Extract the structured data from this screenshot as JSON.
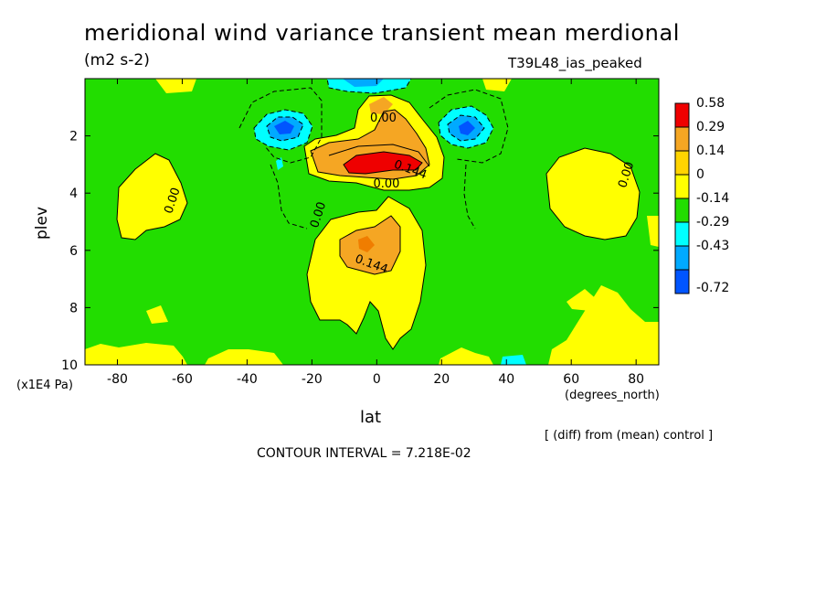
{
  "title": "meridional wind variance transient mean merdional",
  "units": "(m2 s-2)",
  "run_label": "T39L48_ias_peaked",
  "y_axis_label": "plev",
  "y_unit_label": "(x1E4 Pa)",
  "x_axis_label": "lat",
  "x_unit_label": "(degrees_north)",
  "diff_note": "[ (diff) from (mean) control ]",
  "contour_interval": "CONTOUR INTERVAL = 7.218E-02",
  "colors": {
    "red": "#ef0000",
    "dark_orange": "#f07d00",
    "orange": "#f5a623",
    "yellow": "#ffff00",
    "green": "#22dd00",
    "cyan": "#00ffff",
    "sky": "#00aaff",
    "blue": "#0055ff"
  },
  "chart_data": {
    "type": "heatmap",
    "xlim": [
      -90,
      87
    ],
    "ylim": [
      10,
      0
    ],
    "x_ticks": [
      "-80",
      "-60",
      "-40",
      "-20",
      "0",
      "20",
      "40",
      "60",
      "80"
    ],
    "x_tick_values": [
      -80,
      -60,
      -40,
      -20,
      0,
      20,
      40,
      60,
      80
    ],
    "y_ticks": [
      "2",
      "4",
      "6",
      "8",
      "10"
    ],
    "y_tick_values": [
      2,
      4,
      6,
      8,
      10
    ],
    "legend": {
      "labels": [
        "0.58",
        "0.29",
        "0.14",
        "0",
        "-0.14",
        "-0.29",
        "-0.43",
        "-0.72"
      ],
      "colors": [
        "#ef0000",
        "#f5a623",
        "#ffd400",
        "#ffff00",
        "#22dd00",
        "#00ffff",
        "#00aaff",
        "#0055ff"
      ]
    },
    "contour_labels": [
      {
        "text": "0.00",
        "lat": 2,
        "plev": 1.5
      },
      {
        "text": "0.144",
        "lat": 10,
        "plev": 3.3
      },
      {
        "text": "0.00",
        "lat": 3,
        "plev": 3.8
      },
      {
        "text": "0.00",
        "lat": -62,
        "plev": 4.3
      },
      {
        "text": "0.00",
        "lat": -17,
        "plev": 4.8
      },
      {
        "text": "0.144",
        "lat": -2,
        "plev": 6.6
      },
      {
        "text": "0.00",
        "lat": 78,
        "plev": 3.4
      }
    ],
    "regions": [
      {
        "level": "yellow",
        "lat": -72,
        "plev": 3.6
      },
      {
        "level": "yellow",
        "lat": 72,
        "plev": 4.0
      },
      {
        "level": "yellow",
        "lat": 0,
        "plev": 6.8
      },
      {
        "level": "orange",
        "lat": 0,
        "plev": 2.6
      },
      {
        "level": "red",
        "lat": 2,
        "plev": 3.0
      },
      {
        "level": "blue",
        "lat": -28,
        "plev": 1.6
      },
      {
        "level": "blue",
        "lat": 27,
        "plev": 1.6
      },
      {
        "level": "cyan",
        "lat": 0,
        "plev": 0.4
      }
    ]
  }
}
